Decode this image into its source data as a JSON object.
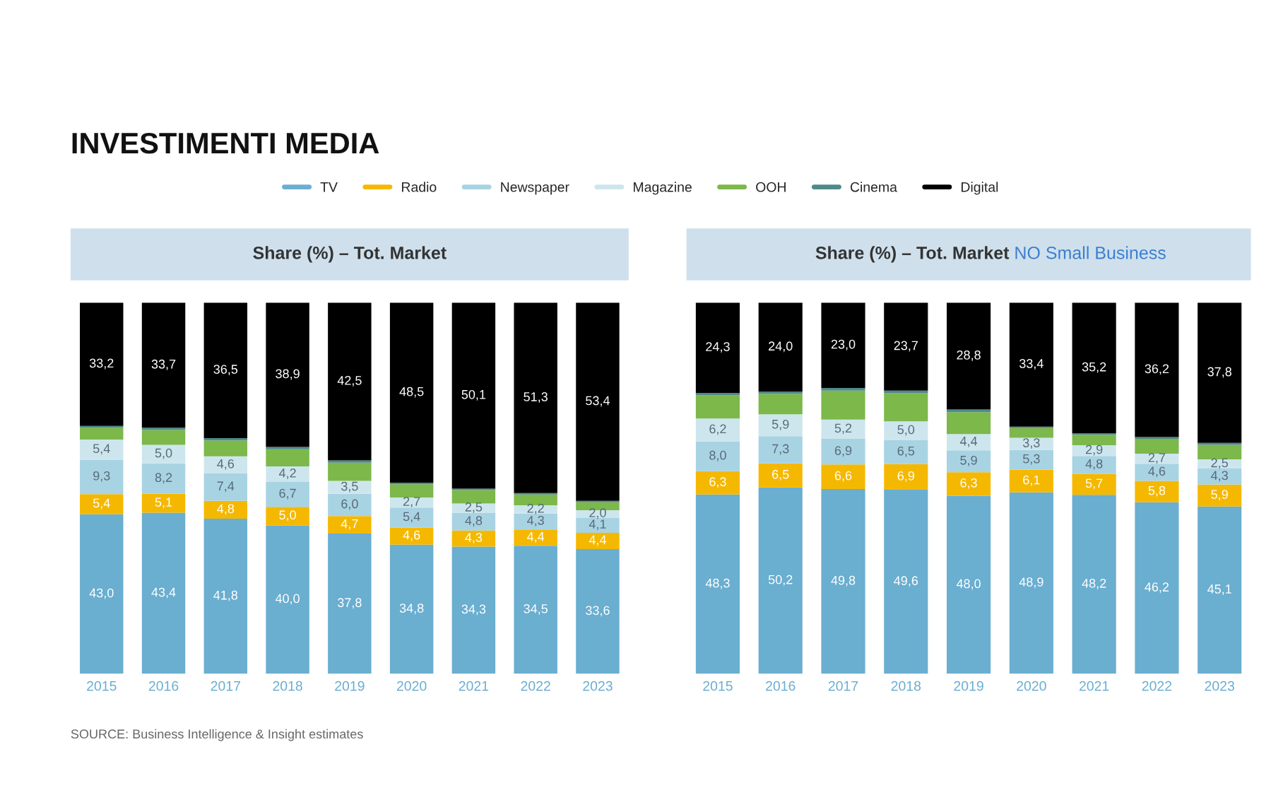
{
  "chart_data": [
    {
      "type": "bar",
      "stacked": true,
      "title": "Share (%) – Tot. Market",
      "legend": "top",
      "data_labels": false,
      "grid": false,
      "annotations": [
        "INVESTIMENTI MEDIA",
        "SOURCE: Business Intelligence & Insight estimates"
      ],
      "categories": [
        "2015",
        "2016",
        "2017",
        "2018",
        "2019",
        "2020",
        "2021",
        "2022",
        "2023"
      ],
      "series": [
        {
          "name": "TV",
          "color": "#6aaed0",
          "values": [
            43.0,
            43.4,
            41.8,
            40.0,
            37.8,
            34.8,
            34.3,
            34.5,
            33.6
          ],
          "value_labels": [
            "43,0",
            "43,4",
            "41,8",
            "40,0",
            "37,8",
            "34,8",
            "34,3",
            "34,5",
            "33,6"
          ]
        },
        {
          "name": "Radio",
          "color": "#f5b800",
          "values": [
            5.4,
            5.1,
            4.8,
            5.0,
            4.7,
            4.6,
            4.3,
            4.4,
            4.4
          ],
          "value_labels": [
            "5,4",
            "5,1",
            "4,8",
            "5,0",
            "4,7",
            "4,6",
            "4,3",
            "4,4",
            "4,4"
          ]
        },
        {
          "name": "Newspaper",
          "color": "#a8d3e3",
          "values": [
            9.3,
            8.2,
            7.4,
            6.7,
            6.0,
            5.4,
            4.8,
            4.3,
            4.1
          ],
          "value_labels": [
            "9,3",
            "8,2",
            "7,4",
            "6,7",
            "6,0",
            "5,4",
            "4,8",
            "4,3",
            "4,1"
          ]
        },
        {
          "name": "Magazine",
          "color": "#cde6ee",
          "values": [
            5.4,
            5.0,
            4.6,
            4.2,
            3.5,
            2.7,
            2.5,
            2.2,
            2.0
          ],
          "value_labels": [
            "5,4",
            "5,0",
            "4,6",
            "4,2",
            "3,5",
            "2,7",
            "2,5",
            "2,2",
            "2,0"
          ]
        },
        {
          "name": "OOH",
          "color": "#7cb84a",
          "values": [
            3.2,
            4.0,
            4.3,
            4.6,
            4.9,
            3.6,
            3.6,
            2.9,
            2.1
          ]
        },
        {
          "name": "Cinema",
          "color": "#4f8a8b",
          "values": [
            0.5,
            0.6,
            0.6,
            0.6,
            0.6,
            0.4,
            0.4,
            0.4,
            0.4
          ]
        },
        {
          "name": "Digital",
          "color": "#000000",
          "values": [
            33.2,
            33.7,
            36.5,
            38.9,
            42.5,
            48.5,
            50.1,
            51.3,
            53.4
          ],
          "value_labels": [
            "33,2",
            "33,7",
            "36,5",
            "38,9",
            "42,5",
            "48,5",
            "50,1",
            "51,3",
            "53,4"
          ]
        }
      ]
    },
    {
      "type": "bar",
      "stacked": true,
      "title": "Share (%) – Tot. Market",
      "subtitle": "NO Small Business",
      "legend": false,
      "grid": false,
      "categories": [
        "2015",
        "2016",
        "2017",
        "2018",
        "2019",
        "2020",
        "2021",
        "2022",
        "2023"
      ],
      "series": [
        {
          "color": "#6aaed0",
          "values": [
            48.3,
            50.2,
            49.8,
            49.6,
            48.0,
            48.9,
            48.2,
            46.2,
            45.1
          ],
          "value_labels": [
            "48,3",
            "50,2",
            "49,8",
            "49,6",
            "48,0",
            "48,9",
            "48,2",
            "46,2",
            "45,1"
          ]
        },
        {
          "color": "#f5b800",
          "values": [
            6.3,
            6.5,
            6.6,
            6.9,
            6.3,
            6.1,
            5.7,
            5.8,
            5.9
          ],
          "value_labels": [
            "6,3",
            "6,5",
            "6,6",
            "6,9",
            "6,3",
            "6,1",
            "5,7",
            "5,8",
            "5,9"
          ]
        },
        {
          "color": "#a8d3e3",
          "values": [
            8.0,
            7.3,
            6.9,
            6.5,
            5.9,
            5.3,
            4.8,
            4.6,
            4.3
          ],
          "value_labels": [
            "8,0",
            "7,3",
            "6,9",
            "6,5",
            "5,9",
            "5,3",
            "4,8",
            "4,6",
            "4,3"
          ]
        },
        {
          "color": "#cde6ee",
          "values": [
            6.2,
            5.9,
            5.2,
            5.0,
            4.4,
            3.3,
            2.9,
            2.7,
            2.5
          ],
          "value_labels": [
            "6,2",
            "5,9",
            "5,2",
            "5,0",
            "4,4",
            "3,3",
            "2,9",
            "2,7",
            "2,5"
          ]
        },
        {
          "color": "#7cb84a",
          "values": [
            6.2,
            5.5,
            7.8,
            7.6,
            5.9,
            2.6,
            2.8,
            4.0,
            3.9
          ]
        },
        {
          "color": "#4f8a8b",
          "values": [
            0.7,
            0.6,
            0.7,
            0.7,
            0.7,
            0.4,
            0.4,
            0.5,
            0.5
          ]
        },
        {
          "color": "#000000",
          "values": [
            24.3,
            24.0,
            23.0,
            23.7,
            28.8,
            33.4,
            35.2,
            36.2,
            37.8
          ],
          "value_labels": [
            "24,3",
            "24,0",
            "23,0",
            "23,7",
            "28,8",
            "33,4",
            "35,2",
            "36,2",
            "37,8"
          ]
        }
      ]
    }
  ]
}
